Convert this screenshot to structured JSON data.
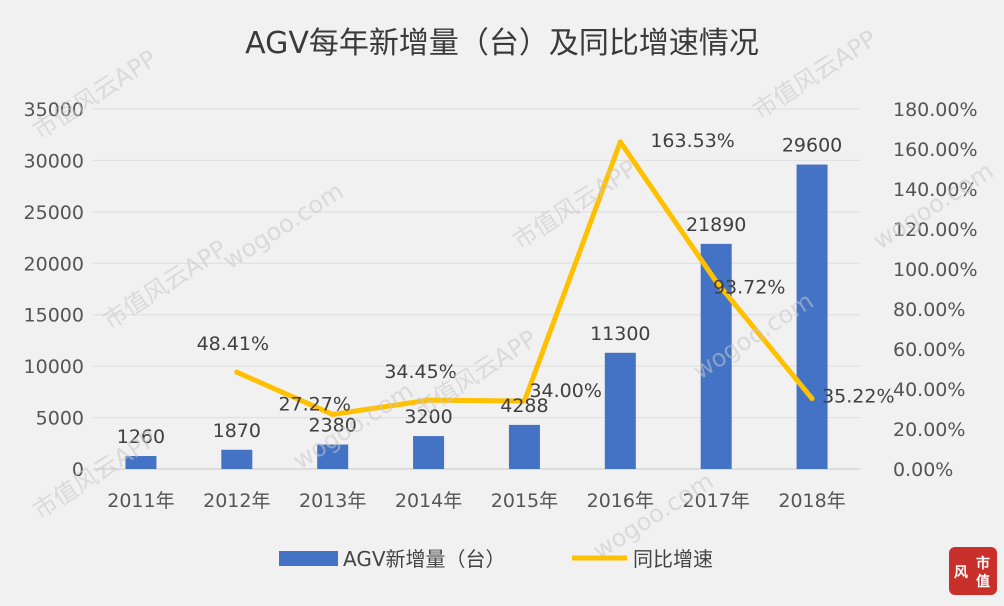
{
  "chart_data": {
    "type": "bar+line",
    "title": "AGV每年新增量（台）及同比增速情况",
    "categories": [
      "2011年",
      "2012年",
      "2013年",
      "2014年",
      "2015年",
      "2016年",
      "2017年",
      "2018年"
    ],
    "series": [
      {
        "name": "AGV新增量（台）",
        "type": "bar",
        "axis": "left",
        "color": "#4472c4",
        "values": [
          1260,
          1870,
          2380,
          3200,
          4288,
          11300,
          21890,
          29600
        ],
        "labels": [
          "1260",
          "1870",
          "2380",
          "3200",
          "4288",
          "11300",
          "21890",
          "29600"
        ]
      },
      {
        "name": "同比增速",
        "type": "line",
        "axis": "right",
        "color": "#ffc000",
        "values": [
          null,
          48.41,
          27.27,
          34.45,
          34.0,
          163.53,
          93.72,
          35.22
        ],
        "labels": [
          "",
          "48.41%",
          "27.27%",
          "34.45%",
          "34.00%",
          "163.53%",
          "93.72%",
          "35.22%"
        ]
      }
    ],
    "y_left": {
      "ylim": [
        0,
        35000
      ],
      "ticks": [
        "0",
        "5000",
        "10000",
        "15000",
        "20000",
        "25000",
        "30000",
        "35000"
      ]
    },
    "y_right": {
      "ylim": [
        0,
        180
      ],
      "ticks": [
        "0.00%",
        "20.00%",
        "40.00%",
        "60.00%",
        "80.00%",
        "100.00%",
        "120.00%",
        "140.00%",
        "160.00%",
        "180.00%"
      ]
    },
    "grid": true,
    "legend_position": "bottom"
  },
  "watermark": {
    "texts": [
      "市值风云APP",
      "wogoo.com"
    ]
  },
  "logo": {
    "chars": [
      "风",
      "市",
      "值"
    ],
    "color": "#c9302c"
  }
}
